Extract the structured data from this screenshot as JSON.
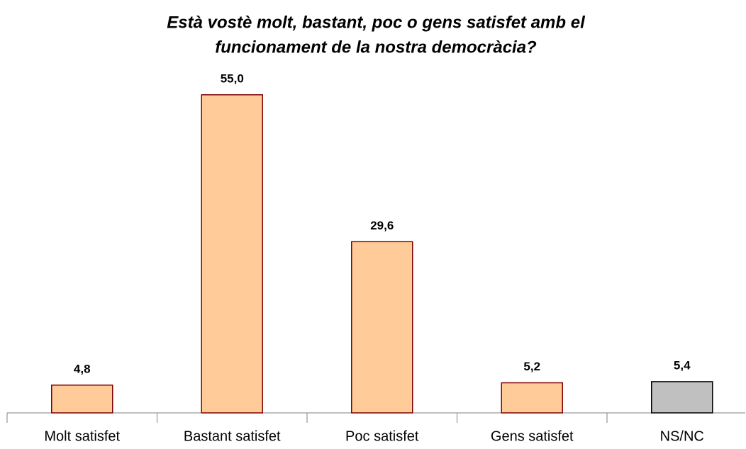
{
  "chart_data": {
    "type": "bar",
    "title": [
      "Està vostè molt, bastant, poc o gens satisfet amb el",
      "funcionament de la nostra democràcia?"
    ],
    "categories": [
      "Molt satisfet",
      "Bastant satisfet",
      "Poc satisfet",
      "Gens satisfet",
      "NS/NC"
    ],
    "values": [
      4.8,
      55.0,
      29.6,
      5.2,
      5.4
    ],
    "value_labels": [
      "4,8",
      "55,0",
      "29,6",
      "5,2",
      "5,4"
    ],
    "colors": [
      "#FFCC99",
      "#FFCC99",
      "#FFCC99",
      "#FFCC99",
      "#C0C0C0"
    ],
    "edge_colors": [
      "#800000",
      "#800000",
      "#800000",
      "#800000",
      "#000000"
    ],
    "ylim": [
      0,
      60
    ]
  }
}
